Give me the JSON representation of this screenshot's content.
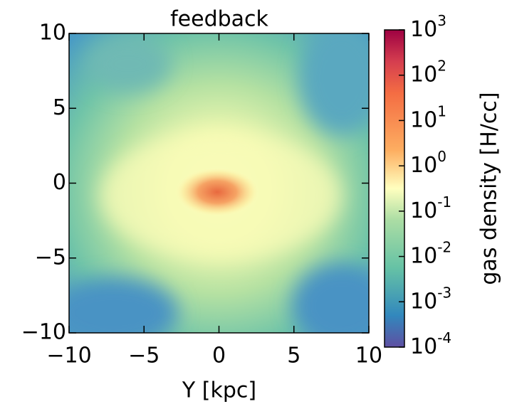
{
  "chart_data": {
    "type": "heatmap",
    "title": "feedback",
    "x_label": "Y [kpc]",
    "xlim": [
      -10,
      10
    ],
    "xticks": [
      {
        "value": -10,
        "label": "−10"
      },
      {
        "value": -5,
        "label": "−5"
      },
      0,
      5,
      10
    ],
    "ylim": [
      -10,
      10
    ],
    "yticks": [
      {
        "value": -10,
        "label": "−10"
      },
      {
        "value": -5,
        "label": "−5"
      },
      0,
      5,
      10
    ],
    "colorbar": {
      "label": "gas density [H/cc]",
      "scale": "log",
      "colormap": "Spectral_r",
      "lim": [
        0.0001,
        1000
      ],
      "ticks": [
        {
          "value": 0.0001,
          "label": "10^-4"
        },
        {
          "value": 0.001,
          "label": "10^-3"
        },
        {
          "value": 0.01,
          "label": "10^-2"
        },
        {
          "value": 0.1,
          "label": "10^-1"
        },
        {
          "value": 1,
          "label": "10^0"
        },
        {
          "value": 10,
          "label": "10^1"
        },
        {
          "value": 100,
          "label": "10^2"
        },
        {
          "value": 1000,
          "label": "10^3"
        }
      ]
    }
  }
}
